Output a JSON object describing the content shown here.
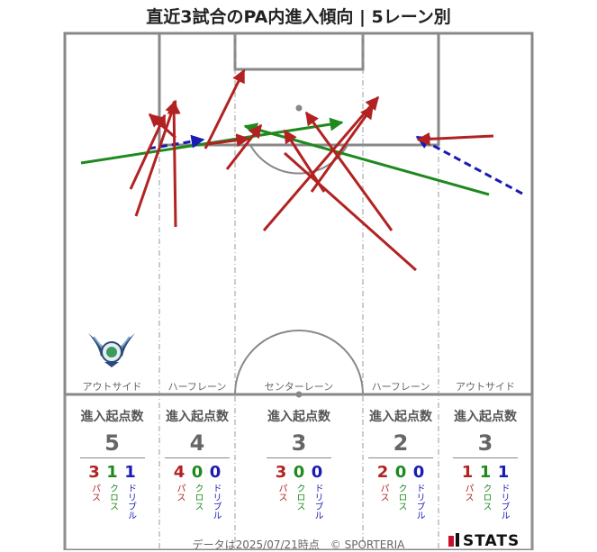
{
  "title": "直近3試合のPA内進入傾向 | 5レーン別",
  "lanes": [
    {
      "name": "アウトサイド",
      "header": "進入起点数",
      "total": "5",
      "pass": "3",
      "cross": "1",
      "dribble": "1"
    },
    {
      "name": "ハーフレーン",
      "header": "進入起点数",
      "total": "4",
      "pass": "4",
      "cross": "0",
      "dribble": "0"
    },
    {
      "name": "センターレーン",
      "header": "進入起点数",
      "total": "3",
      "pass": "3",
      "cross": "0",
      "dribble": "0"
    },
    {
      "name": "ハーフレーン",
      "header": "進入起点数",
      "total": "2",
      "pass": "2",
      "cross": "0",
      "dribble": "0"
    },
    {
      "name": "アウトサイド",
      "header": "進入起点数",
      "total": "3",
      "pass": "1",
      "cross": "1",
      "dribble": "1"
    }
  ],
  "legend_labels": {
    "pass": "パス",
    "cross": "クロス",
    "dribble": "ドリブル"
  },
  "colors": {
    "pass": "#b22222",
    "cross": "#1e8a1e",
    "dribble": "#1a1ab4"
  },
  "footer": "データは2025/07/21時点　© SPORTERIA",
  "brand": "STATS",
  "emblem_icon": "team-crest-icon"
}
